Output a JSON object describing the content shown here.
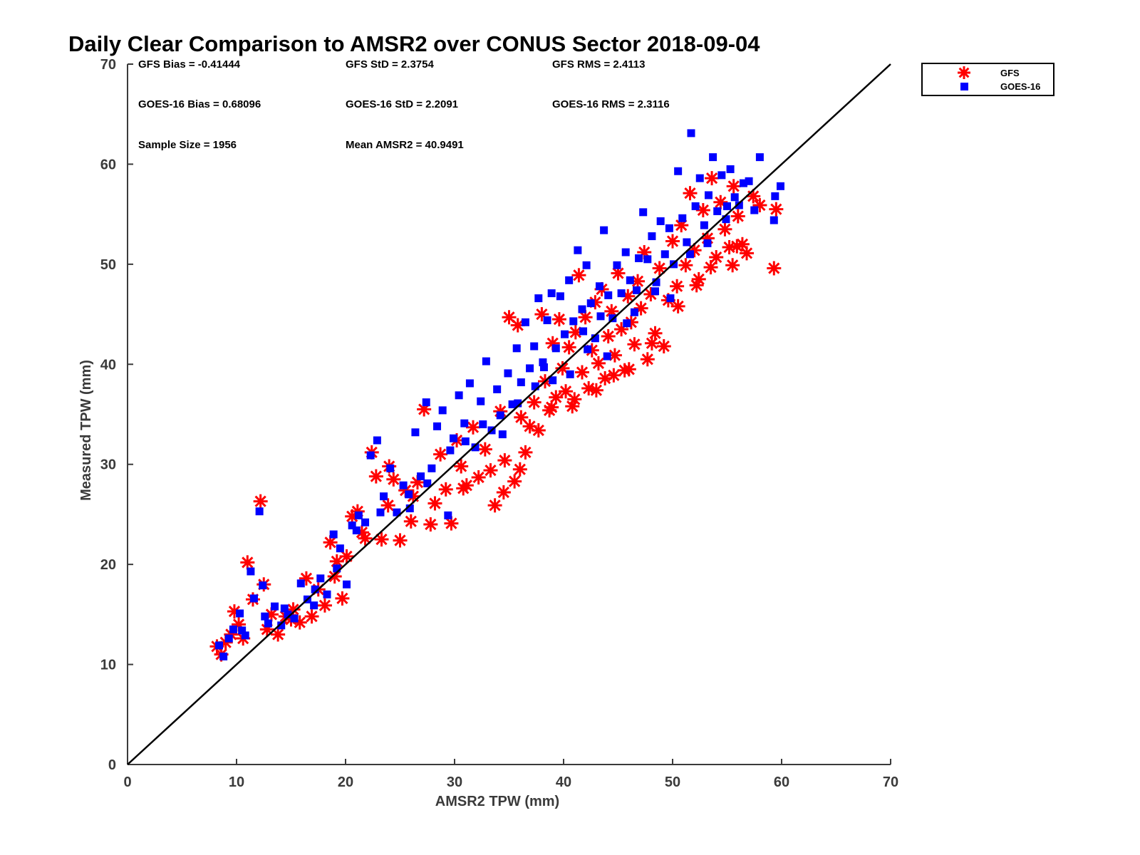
{
  "chart_data": {
    "type": "scatter",
    "title": "Daily Clear Comparison to AMSR2 over CONUS Sector 2018-09-04",
    "xlabel": "AMSR2 TPW (mm)",
    "ylabel": "Measured TPW (mm)",
    "xlim": [
      0,
      70
    ],
    "ylim": [
      0,
      70
    ],
    "xticks": [
      "0",
      "10",
      "20",
      "30",
      "40",
      "50",
      "60",
      "70"
    ],
    "yticks": [
      "0",
      "10",
      "20",
      "30",
      "40",
      "50",
      "60",
      "70"
    ],
    "reference_line": {
      "x": [
        0,
        70
      ],
      "y": [
        0,
        70
      ],
      "color": "#000000"
    },
    "legend": {
      "position": "top-right",
      "entries": [
        "GFS",
        "GOES-16"
      ]
    },
    "stats": [
      [
        "GFS Bias = -0.41444",
        "GFS StD = 2.3754",
        "GFS RMS = 2.4113"
      ],
      [
        "GOES-16 Bias = 0.68096",
        "GOES-16 StD = 2.2091",
        "GOES-16 RMS = 2.3116"
      ],
      [
        "Sample Size = 1956",
        "Mean AMSR2 = 40.9491"
      ]
    ],
    "series": [
      {
        "name": "GFS",
        "color": "#ff0000",
        "marker": "asterisk",
        "points": [
          [
            8.2,
            11.8
          ],
          [
            8.6,
            11.0
          ],
          [
            9.0,
            12.2
          ],
          [
            9.5,
            13.0
          ],
          [
            9.8,
            15.3
          ],
          [
            10.2,
            14.0
          ],
          [
            10.6,
            12.6
          ],
          [
            11.0,
            20.2
          ],
          [
            11.5,
            16.5
          ],
          [
            12.2,
            26.3
          ],
          [
            12.5,
            18.0
          ],
          [
            12.8,
            13.5
          ],
          [
            13.2,
            15.0
          ],
          [
            13.8,
            13.0
          ],
          [
            14.5,
            14.8
          ],
          [
            15.2,
            15.5
          ],
          [
            15.8,
            14.2
          ],
          [
            16.4,
            18.6
          ],
          [
            16.9,
            14.8
          ],
          [
            17.5,
            17.5
          ],
          [
            18.1,
            15.9
          ],
          [
            18.6,
            22.2
          ],
          [
            19.2,
            20.3
          ],
          [
            19.7,
            16.6
          ],
          [
            20.1,
            20.8
          ],
          [
            20.6,
            24.8
          ],
          [
            21.1,
            25.3
          ],
          [
            21.8,
            22.6
          ],
          [
            22.4,
            31.2
          ],
          [
            22.8,
            28.8
          ],
          [
            23.3,
            22.5
          ],
          [
            23.9,
            25.9
          ],
          [
            24.4,
            28.5
          ],
          [
            25.0,
            22.4
          ],
          [
            25.5,
            27.4
          ],
          [
            26.0,
            24.3
          ],
          [
            26.6,
            28.2
          ],
          [
            27.2,
            35.5
          ],
          [
            27.8,
            24.0
          ],
          [
            28.2,
            26.1
          ],
          [
            28.7,
            31.0
          ],
          [
            29.2,
            27.5
          ],
          [
            29.7,
            24.1
          ],
          [
            30.2,
            32.4
          ],
          [
            30.6,
            29.8
          ],
          [
            31.1,
            27.9
          ],
          [
            31.7,
            33.7
          ],
          [
            32.2,
            28.7
          ],
          [
            32.8,
            31.5
          ],
          [
            33.3,
            29.4
          ],
          [
            33.7,
            25.9
          ],
          [
            34.2,
            35.3
          ],
          [
            34.6,
            30.4
          ],
          [
            35.0,
            44.7
          ],
          [
            35.5,
            28.3
          ],
          [
            35.8,
            43.9
          ],
          [
            36.1,
            34.7
          ],
          [
            36.5,
            31.2
          ],
          [
            36.9,
            33.8
          ],
          [
            37.3,
            36.2
          ],
          [
            37.7,
            33.4
          ],
          [
            38.0,
            45.0
          ],
          [
            38.3,
            38.3
          ],
          [
            38.7,
            35.4
          ],
          [
            39.0,
            42.1
          ],
          [
            39.3,
            36.7
          ],
          [
            39.6,
            44.5
          ],
          [
            39.9,
            39.6
          ],
          [
            40.2,
            37.3
          ],
          [
            40.5,
            41.7
          ],
          [
            40.8,
            35.8
          ],
          [
            41.1,
            43.2
          ],
          [
            41.4,
            48.9
          ],
          [
            41.7,
            39.2
          ],
          [
            42.0,
            44.7
          ],
          [
            42.3,
            37.6
          ],
          [
            42.6,
            41.4
          ],
          [
            42.9,
            46.2
          ],
          [
            43.2,
            40.1
          ],
          [
            43.5,
            47.5
          ],
          [
            43.8,
            38.6
          ],
          [
            44.1,
            42.8
          ],
          [
            44.4,
            45.3
          ],
          [
            44.7,
            40.9
          ],
          [
            45.0,
            49.1
          ],
          [
            45.3,
            43.5
          ],
          [
            45.6,
            39.4
          ],
          [
            45.9,
            46.8
          ],
          [
            46.2,
            44.2
          ],
          [
            46.5,
            42.0
          ],
          [
            46.8,
            48.3
          ],
          [
            47.1,
            45.6
          ],
          [
            47.4,
            51.2
          ],
          [
            47.7,
            40.5
          ],
          [
            48.0,
            47.0
          ],
          [
            48.4,
            43.1
          ],
          [
            48.8,
            49.6
          ],
          [
            49.2,
            41.8
          ],
          [
            49.6,
            46.4
          ],
          [
            50.0,
            52.3
          ],
          [
            50.4,
            47.8
          ],
          [
            50.8,
            53.9
          ],
          [
            51.2,
            49.9
          ],
          [
            51.6,
            57.1
          ],
          [
            52.0,
            51.4
          ],
          [
            52.4,
            48.5
          ],
          [
            52.8,
            55.4
          ],
          [
            53.2,
            52.6
          ],
          [
            53.6,
            58.6
          ],
          [
            54.0,
            50.7
          ],
          [
            54.4,
            56.2
          ],
          [
            54.8,
            53.5
          ],
          [
            55.2,
            51.7
          ],
          [
            55.6,
            57.8
          ],
          [
            56.0,
            54.8
          ],
          [
            56.4,
            52.0
          ],
          [
            56.8,
            51.1
          ],
          [
            57.4,
            56.8
          ],
          [
            58.0,
            55.9
          ],
          [
            59.3,
            49.6
          ],
          [
            59.5,
            55.5
          ],
          [
            34.5,
            27.2
          ],
          [
            36.0,
            29.5
          ],
          [
            30.8,
            27.6
          ],
          [
            26.2,
            26.8
          ],
          [
            21.5,
            23.2
          ],
          [
            24.0,
            29.8
          ],
          [
            19.0,
            18.8
          ],
          [
            15.0,
            14.5
          ],
          [
            44.6,
            38.9
          ],
          [
            46.0,
            39.5
          ],
          [
            43.0,
            37.4
          ],
          [
            41.0,
            36.5
          ],
          [
            50.5,
            45.8
          ],
          [
            52.2,
            47.9
          ],
          [
            53.5,
            49.7
          ],
          [
            55.5,
            49.9
          ],
          [
            55.9,
            51.8
          ],
          [
            48.1,
            42.1
          ],
          [
            38.9,
            35.7
          ]
        ]
      },
      {
        "name": "GOES-16",
        "color": "#0000ff",
        "marker": "square",
        "points": [
          [
            8.4,
            11.9
          ],
          [
            8.8,
            10.8
          ],
          [
            9.3,
            12.6
          ],
          [
            9.7,
            13.5
          ],
          [
            10.3,
            15.1
          ],
          [
            10.8,
            12.9
          ],
          [
            11.3,
            19.3
          ],
          [
            11.6,
            16.6
          ],
          [
            12.1,
            25.3
          ],
          [
            12.4,
            17.9
          ],
          [
            12.9,
            14.1
          ],
          [
            13.5,
            15.8
          ],
          [
            14.1,
            13.9
          ],
          [
            14.7,
            15.0
          ],
          [
            15.3,
            14.6
          ],
          [
            15.9,
            18.1
          ],
          [
            16.5,
            16.5
          ],
          [
            17.1,
            15.9
          ],
          [
            17.7,
            18.6
          ],
          [
            18.3,
            17.0
          ],
          [
            18.9,
            23.0
          ],
          [
            19.5,
            21.6
          ],
          [
            20.1,
            18.0
          ],
          [
            20.6,
            23.9
          ],
          [
            21.2,
            24.9
          ],
          [
            21.8,
            24.2
          ],
          [
            22.3,
            30.9
          ],
          [
            22.9,
            32.4
          ],
          [
            23.5,
            26.8
          ],
          [
            24.1,
            29.6
          ],
          [
            24.7,
            25.2
          ],
          [
            25.3,
            27.9
          ],
          [
            25.9,
            25.6
          ],
          [
            26.4,
            33.2
          ],
          [
            26.9,
            28.8
          ],
          [
            27.4,
            36.2
          ],
          [
            27.9,
            29.6
          ],
          [
            28.4,
            33.8
          ],
          [
            28.9,
            35.4
          ],
          [
            29.4,
            24.9
          ],
          [
            29.9,
            32.6
          ],
          [
            30.4,
            36.9
          ],
          [
            30.9,
            34.1
          ],
          [
            31.4,
            38.1
          ],
          [
            31.9,
            31.7
          ],
          [
            32.4,
            36.3
          ],
          [
            32.9,
            40.3
          ],
          [
            33.4,
            33.4
          ],
          [
            33.9,
            37.5
          ],
          [
            34.4,
            33.0
          ],
          [
            34.9,
            39.1
          ],
          [
            35.3,
            36.0
          ],
          [
            35.7,
            41.6
          ],
          [
            36.1,
            38.2
          ],
          [
            36.5,
            44.2
          ],
          [
            36.9,
            39.6
          ],
          [
            37.3,
            41.8
          ],
          [
            37.7,
            46.6
          ],
          [
            38.1,
            40.2
          ],
          [
            38.5,
            44.4
          ],
          [
            38.9,
            47.1
          ],
          [
            39.3,
            41.6
          ],
          [
            39.7,
            46.8
          ],
          [
            40.1,
            43.0
          ],
          [
            40.5,
            48.4
          ],
          [
            40.9,
            44.3
          ],
          [
            41.3,
            51.4
          ],
          [
            41.7,
            45.5
          ],
          [
            42.1,
            49.9
          ],
          [
            42.5,
            46.1
          ],
          [
            42.9,
            42.6
          ],
          [
            43.3,
            47.8
          ],
          [
            43.7,
            53.4
          ],
          [
            44.1,
            46.9
          ],
          [
            44.5,
            44.6
          ],
          [
            44.9,
            49.9
          ],
          [
            45.3,
            47.1
          ],
          [
            45.7,
            51.2
          ],
          [
            46.1,
            48.4
          ],
          [
            46.5,
            45.2
          ],
          [
            46.9,
            50.6
          ],
          [
            47.3,
            55.2
          ],
          [
            47.7,
            50.5
          ],
          [
            48.1,
            52.8
          ],
          [
            48.5,
            48.2
          ],
          [
            48.9,
            54.3
          ],
          [
            49.3,
            51.0
          ],
          [
            49.7,
            53.6
          ],
          [
            50.1,
            50.0
          ],
          [
            50.5,
            59.3
          ],
          [
            50.9,
            54.6
          ],
          [
            51.3,
            52.2
          ],
          [
            51.7,
            63.1
          ],
          [
            52.1,
            55.8
          ],
          [
            52.5,
            58.6
          ],
          [
            52.9,
            53.9
          ],
          [
            53.3,
            56.9
          ],
          [
            53.7,
            60.7
          ],
          [
            54.1,
            55.3
          ],
          [
            54.5,
            58.9
          ],
          [
            54.9,
            54.5
          ],
          [
            55.3,
            59.5
          ],
          [
            55.7,
            56.7
          ],
          [
            56.1,
            55.9
          ],
          [
            56.5,
            58.1
          ],
          [
            57.0,
            58.3
          ],
          [
            57.5,
            55.4
          ],
          [
            58.0,
            60.7
          ],
          [
            59.3,
            54.4
          ],
          [
            59.4,
            56.8
          ],
          [
            59.9,
            57.8
          ],
          [
            45.8,
            44.1
          ],
          [
            44.0,
            40.8
          ],
          [
            42.2,
            41.5
          ],
          [
            40.6,
            39.0
          ],
          [
            39.0,
            38.4
          ],
          [
            37.4,
            37.8
          ],
          [
            35.8,
            36.1
          ],
          [
            34.2,
            34.9
          ],
          [
            32.6,
            34.0
          ],
          [
            31.0,
            32.3
          ],
          [
            29.6,
            31.4
          ],
          [
            27.5,
            28.1
          ],
          [
            25.8,
            27.0
          ],
          [
            23.2,
            25.2
          ],
          [
            21.0,
            23.4
          ],
          [
            19.2,
            19.6
          ],
          [
            17.2,
            17.5
          ],
          [
            14.4,
            15.6
          ],
          [
            12.6,
            14.8
          ],
          [
            10.5,
            13.4
          ],
          [
            48.4,
            47.3
          ],
          [
            49.8,
            46.6
          ],
          [
            51.6,
            51.0
          ],
          [
            53.2,
            52.1
          ],
          [
            55.0,
            55.8
          ],
          [
            46.7,
            47.4
          ],
          [
            43.4,
            44.8
          ],
          [
            41.8,
            43.3
          ],
          [
            38.2,
            39.7
          ]
        ]
      }
    ]
  }
}
